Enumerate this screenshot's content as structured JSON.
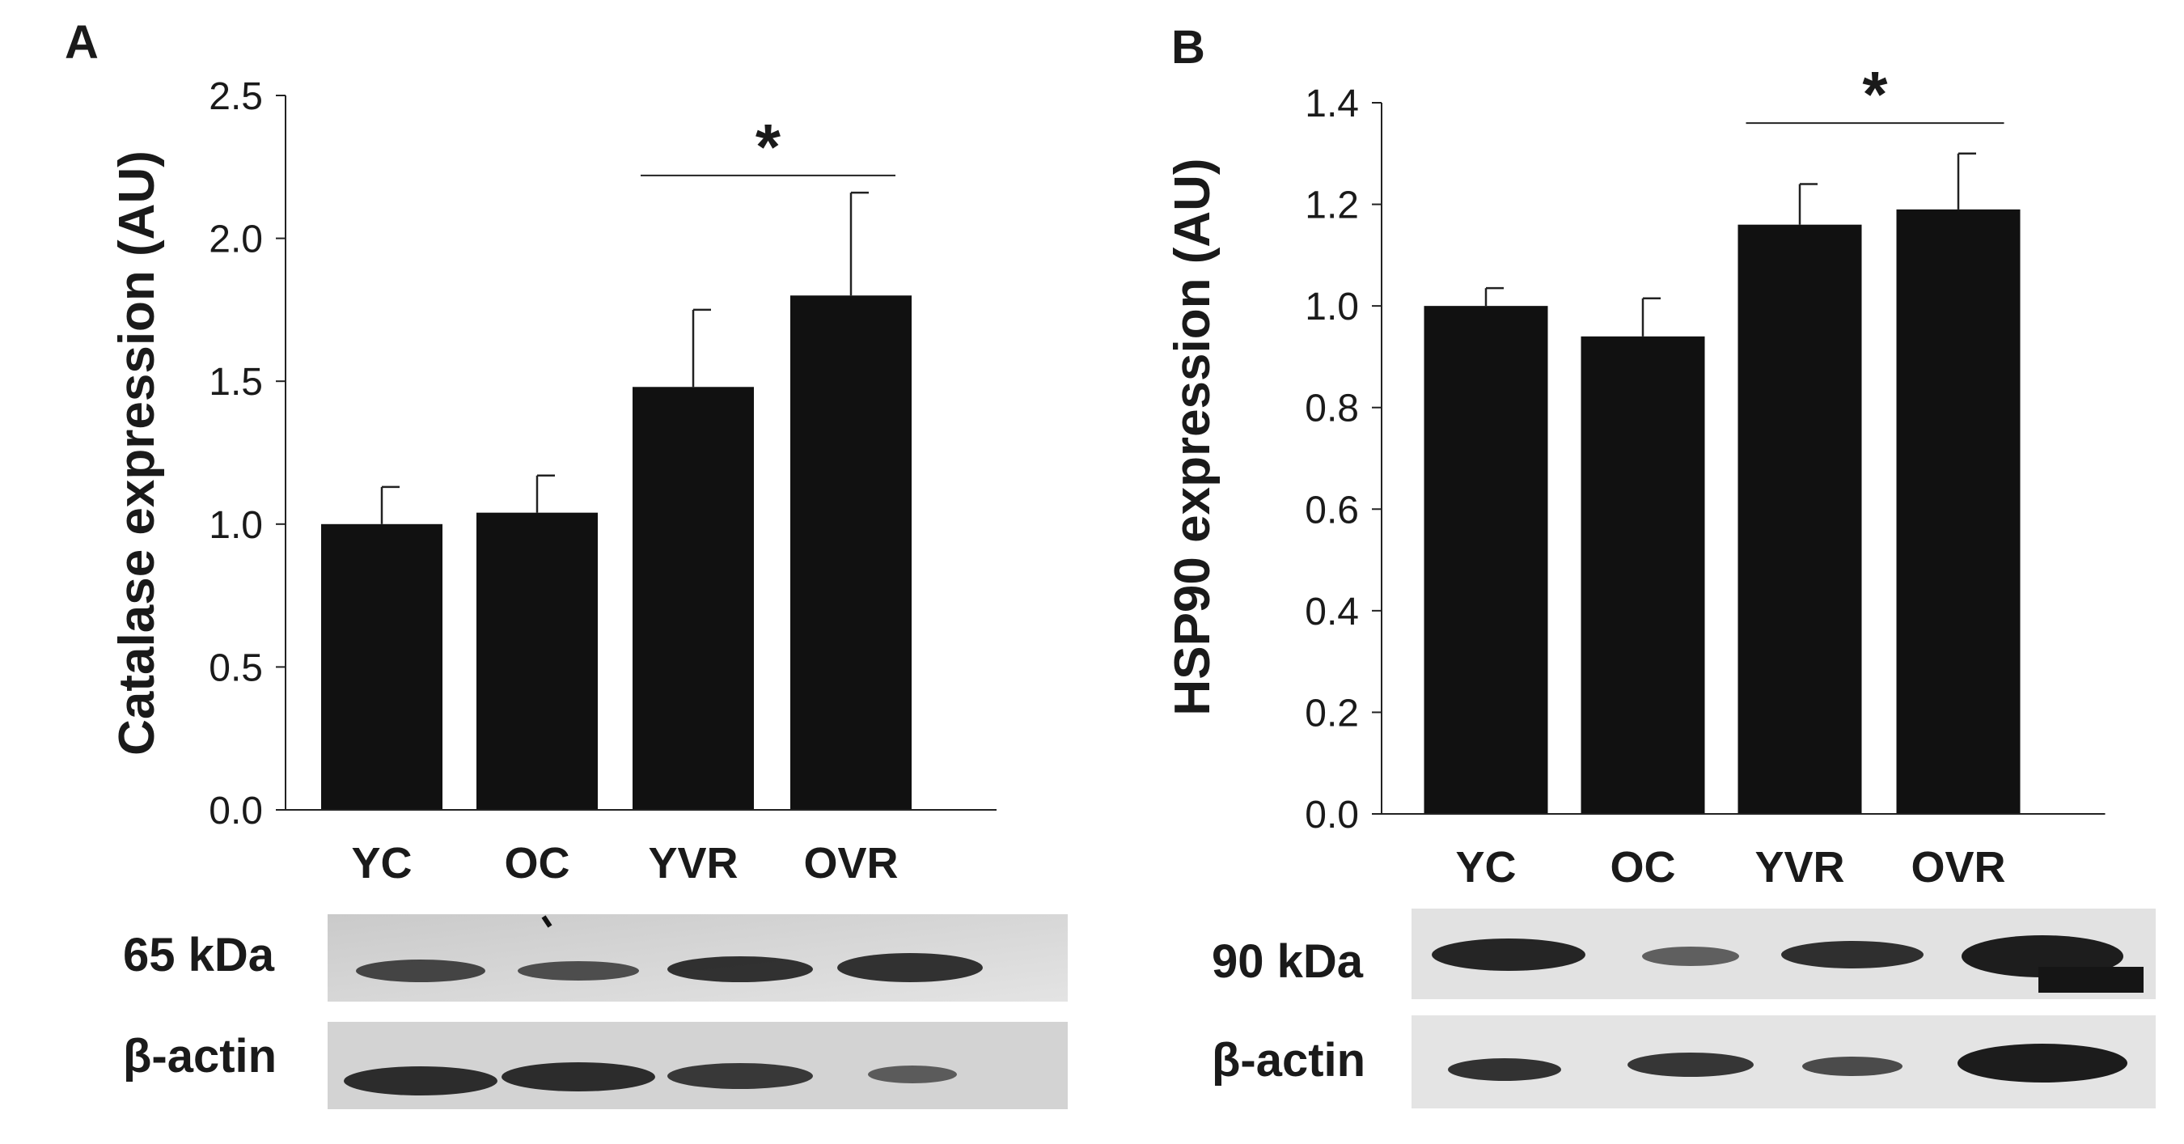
{
  "chart_data": [
    {
      "panel": "A",
      "type": "bar",
      "categories": [
        "YC",
        "OC",
        "YVR",
        "OVR"
      ],
      "values": [
        1.0,
        1.04,
        1.48,
        1.8
      ],
      "errors": [
        0.13,
        0.13,
        0.27,
        0.36
      ],
      "ylabel": "Catalase expression (AU)",
      "xlabel": "",
      "ylim": [
        0,
        2.5
      ],
      "yticks": [
        "0.0",
        "0.5",
        "1.0",
        "1.5",
        "2.0",
        "2.5"
      ],
      "yticks_values": [
        0,
        0.5,
        1.0,
        1.5,
        2.0,
        2.5
      ],
      "significance": {
        "label": "*",
        "from": "YVR",
        "to": "OVR",
        "y": 2.22
      },
      "blot_labels": [
        "65 kDa",
        "β-actin"
      ],
      "bar_color": "#111111",
      "grid": false
    },
    {
      "panel": "B",
      "type": "bar",
      "categories": [
        "YC",
        "OC",
        "YVR",
        "OVR"
      ],
      "values": [
        1.0,
        0.94,
        1.16,
        1.19
      ],
      "errors": [
        0.035,
        0.075,
        0.08,
        0.11
      ],
      "ylabel": "HSP90 expression (AU)",
      "xlabel": "",
      "ylim": [
        0,
        1.4
      ],
      "yticks": [
        "0.0",
        "0.2",
        "0.4",
        "0.6",
        "0.8",
        "1.0",
        "1.2",
        "1.4"
      ],
      "yticks_values": [
        0,
        0.2,
        0.4,
        0.6,
        0.8,
        1.0,
        1.2,
        1.4
      ],
      "significance": {
        "label": "*",
        "from": "YVR",
        "to": "OVR",
        "y": 1.36
      },
      "blot_labels": [
        "90 kDa",
        "β-actin"
      ],
      "bar_color": "#111111",
      "grid": false
    }
  ]
}
